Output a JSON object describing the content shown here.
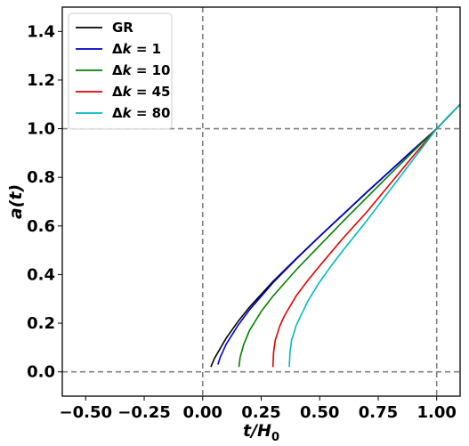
{
  "chart_data": {
    "type": "line",
    "xlabel": "t/H",
    "xlabel_sub": "0",
    "ylabel": "a(t)",
    "xlim": [
      -0.6,
      1.1
    ],
    "ylim": [
      -0.1,
      1.5
    ],
    "x_ticks": [
      -0.5,
      -0.25,
      0.0,
      0.25,
      0.5,
      0.75,
      1.0
    ],
    "x_tick_labels": [
      "−0.50",
      "−0.25",
      "0.00",
      "0.25",
      "0.50",
      "0.75",
      "1.00"
    ],
    "y_ticks": [
      0.0,
      0.2,
      0.4,
      0.6,
      0.8,
      1.0,
      1.2,
      1.4
    ],
    "y_tick_labels": [
      "0.0",
      "0.2",
      "0.4",
      "0.6",
      "0.8",
      "1.0",
      "1.2",
      "1.4"
    ],
    "reference_lines": {
      "vertical": [
        0.0,
        1.0
      ],
      "horizontal": [
        0.0,
        1.0
      ],
      "color": "#808080",
      "style": "dashed"
    },
    "legend_position": "top-left",
    "grid": false,
    "series": [
      {
        "name": "GR",
        "color": "#000000",
        "points": [
          [
            0.035,
            0.02
          ],
          [
            0.05,
            0.055
          ],
          [
            0.1,
            0.138
          ],
          [
            0.15,
            0.206
          ],
          [
            0.2,
            0.266
          ],
          [
            0.3,
            0.371
          ],
          [
            0.4,
            0.466
          ],
          [
            0.5,
            0.558
          ],
          [
            0.6,
            0.648
          ],
          [
            0.7,
            0.738
          ],
          [
            0.8,
            0.826
          ],
          [
            0.9,
            0.914
          ],
          [
            1.0,
            1.0
          ],
          [
            1.1,
            1.1
          ]
        ]
      },
      {
        "name": "Δk = 1",
        "color": "#0000cc",
        "points": [
          [
            0.065,
            0.03
          ],
          [
            0.075,
            0.06
          ],
          [
            0.1,
            0.113
          ],
          [
            0.15,
            0.19
          ],
          [
            0.2,
            0.255
          ],
          [
            0.3,
            0.366
          ],
          [
            0.4,
            0.464
          ],
          [
            0.5,
            0.557
          ],
          [
            0.6,
            0.647
          ],
          [
            0.7,
            0.737
          ],
          [
            0.8,
            0.825
          ],
          [
            0.9,
            0.913
          ],
          [
            1.0,
            1.0
          ],
          [
            1.1,
            1.1
          ]
        ]
      },
      {
        "name": "Δk = 10",
        "color": "#008000",
        "points": [
          [
            0.155,
            0.02
          ],
          [
            0.16,
            0.06
          ],
          [
            0.175,
            0.112
          ],
          [
            0.2,
            0.17
          ],
          [
            0.25,
            0.248
          ],
          [
            0.3,
            0.311
          ],
          [
            0.4,
            0.42
          ],
          [
            0.5,
            0.52
          ],
          [
            0.6,
            0.619
          ],
          [
            0.7,
            0.716
          ],
          [
            0.8,
            0.812
          ],
          [
            0.9,
            0.907
          ],
          [
            1.0,
            1.0
          ],
          [
            1.1,
            1.1
          ]
        ]
      },
      {
        "name": "Δk = 45",
        "color": "#e00000",
        "points": [
          [
            0.3,
            0.02
          ],
          [
            0.303,
            0.08
          ],
          [
            0.31,
            0.13
          ],
          [
            0.33,
            0.19
          ],
          [
            0.35,
            0.232
          ],
          [
            0.4,
            0.313
          ],
          [
            0.45,
            0.377
          ],
          [
            0.5,
            0.436
          ],
          [
            0.6,
            0.55
          ],
          [
            0.7,
            0.656
          ],
          [
            0.8,
            0.772
          ],
          [
            0.9,
            0.888
          ],
          [
            1.0,
            1.0
          ],
          [
            1.1,
            1.1
          ]
        ]
      },
      {
        "name": "Δk = 80",
        "color": "#00bbbb",
        "points": [
          [
            0.37,
            0.02
          ],
          [
            0.373,
            0.08
          ],
          [
            0.38,
            0.13
          ],
          [
            0.4,
            0.192
          ],
          [
            0.45,
            0.292
          ],
          [
            0.5,
            0.37
          ],
          [
            0.55,
            0.437
          ],
          [
            0.6,
            0.5
          ],
          [
            0.7,
            0.62
          ],
          [
            0.8,
            0.747
          ],
          [
            0.9,
            0.874
          ],
          [
            1.0,
            1.0
          ],
          [
            1.1,
            1.1
          ]
        ]
      }
    ],
    "legend": [
      {
        "prefix": "GR",
        "italic": "",
        "suffix": ""
      },
      {
        "prefix": "Δ",
        "italic": "k",
        "suffix": " = 1"
      },
      {
        "prefix": "Δ",
        "italic": "k",
        "suffix": " = 10"
      },
      {
        "prefix": "Δ",
        "italic": "k",
        "suffix": " = 45"
      },
      {
        "prefix": "Δ",
        "italic": "k",
        "suffix": " = 80"
      }
    ]
  }
}
